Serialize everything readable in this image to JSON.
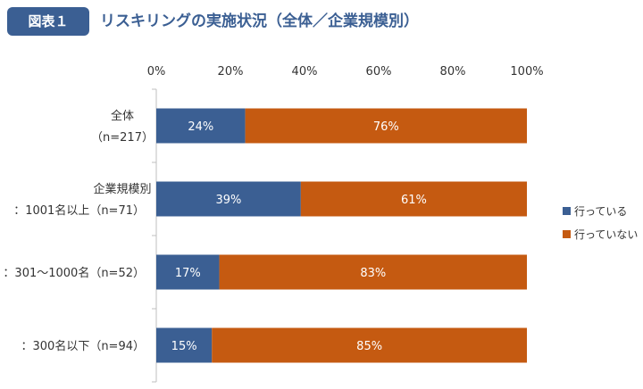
{
  "header": {
    "badge": "図表１",
    "title": "リスキリングの実施状況（全体／企業規模別）"
  },
  "colors": {
    "header_blue": "#3b5f93",
    "series_yes": "#3b5f93",
    "series_no": "#c55a11"
  },
  "chart_data": {
    "type": "bar",
    "orientation": "horizontal",
    "stacked": true,
    "categories": [
      [
        "全体",
        "（n=217）"
      ],
      [
        "企業規模別",
        "：1001名以上（n=71）"
      ],
      [
        "：301～1000名（n=52）"
      ],
      [
        "：300名以下（n=94）"
      ]
    ],
    "series": [
      {
        "name": "行っている",
        "values": [
          24,
          39,
          17,
          15
        ],
        "labels": [
          "24%",
          "39%",
          "17%",
          "15%"
        ],
        "color": "#3b5f93"
      },
      {
        "name": "行っていない",
        "values": [
          76,
          61,
          83,
          85
        ],
        "labels": [
          "76%",
          "61%",
          "83%",
          "85%"
        ],
        "color": "#c55a11"
      }
    ],
    "x_ticks": [
      "0%",
      "20%",
      "40%",
      "60%",
      "80%",
      "100%"
    ],
    "xlim": [
      0,
      100
    ],
    "x_axis_position": "top",
    "grid": false,
    "legend_position": "right"
  }
}
